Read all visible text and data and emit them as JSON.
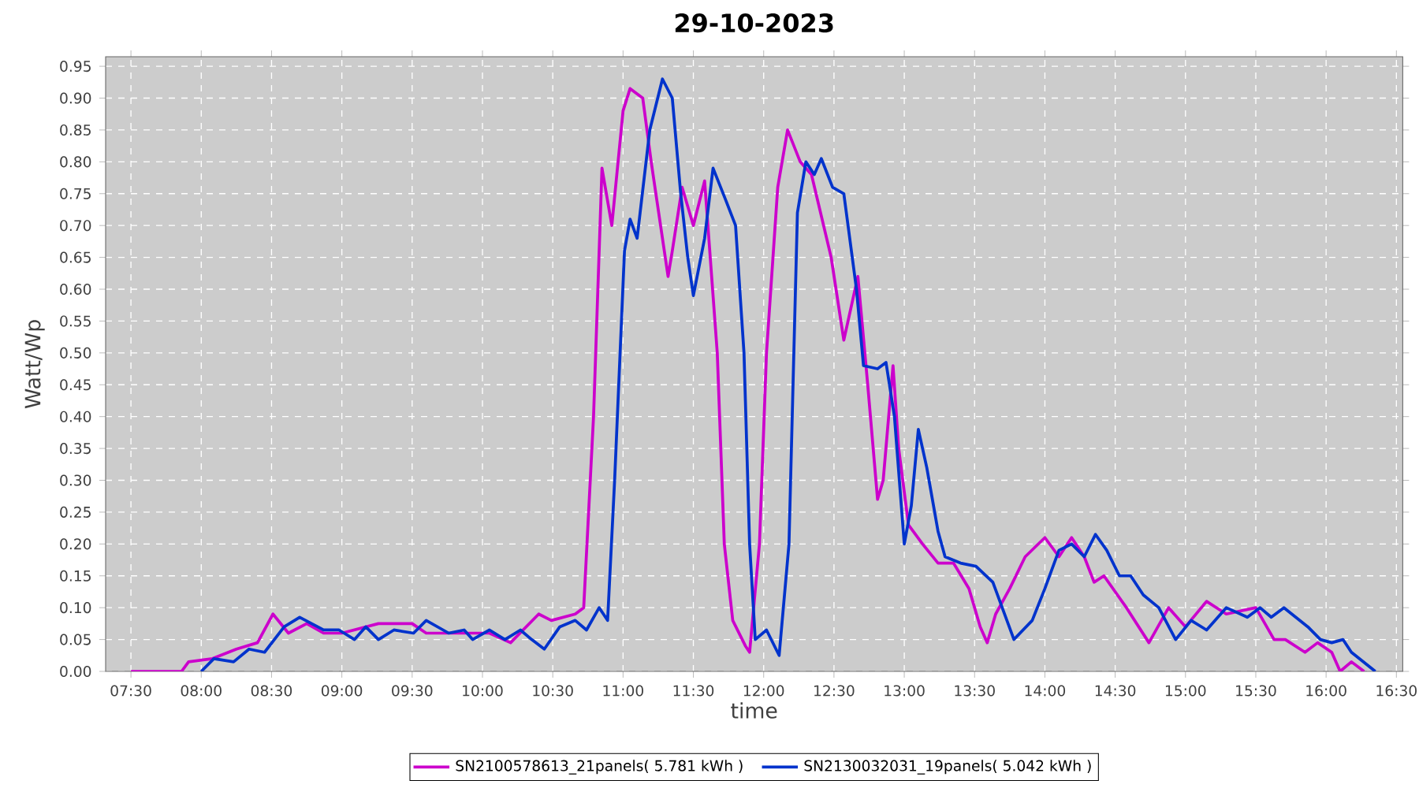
{
  "chart_data": {
    "type": "line",
    "title": "29-10-2023",
    "xlabel": "time",
    "ylabel": "Watt/Wp",
    "xlim": [
      7.32,
      16.545
    ],
    "ylim": [
      0,
      0.965
    ],
    "xticks": [
      {
        "value": 7.5,
        "label": "07:30"
      },
      {
        "value": 8,
        "label": "08:00"
      },
      {
        "value": 8.5,
        "label": "08:30"
      },
      {
        "value": 9,
        "label": "09:00"
      },
      {
        "value": 9.5,
        "label": "09:30"
      },
      {
        "value": 10,
        "label": "10:00"
      },
      {
        "value": 10.5,
        "label": "10:30"
      },
      {
        "value": 11,
        "label": "11:00"
      },
      {
        "value": 11.5,
        "label": "11:30"
      },
      {
        "value": 12,
        "label": "12:00"
      },
      {
        "value": 12.5,
        "label": "12:30"
      },
      {
        "value": 13,
        "label": "13:00"
      },
      {
        "value": 13.5,
        "label": "13:30"
      },
      {
        "value": 14,
        "label": "14:00"
      },
      {
        "value": 14.5,
        "label": "14:30"
      },
      {
        "value": 15,
        "label": "15:00"
      },
      {
        "value": 15.5,
        "label": "15:30"
      },
      {
        "value": 16,
        "label": "16:00"
      },
      {
        "value": 16.5,
        "label": "16:30"
      }
    ],
    "yticks": [
      {
        "value": 0,
        "label": "0.00"
      },
      {
        "value": 0.05,
        "label": "0.05"
      },
      {
        "value": 0.1,
        "label": "0.10"
      },
      {
        "value": 0.15,
        "label": "0.15"
      },
      {
        "value": 0.2,
        "label": "0.20"
      },
      {
        "value": 0.25,
        "label": "0.25"
      },
      {
        "value": 0.3,
        "label": "0.30"
      },
      {
        "value": 0.35,
        "label": "0.35"
      },
      {
        "value": 0.4,
        "label": "0.40"
      },
      {
        "value": 0.45,
        "label": "0.45"
      },
      {
        "value": 0.5,
        "label": "0.50"
      },
      {
        "value": 0.55,
        "label": "0.55"
      },
      {
        "value": 0.6,
        "label": "0.60"
      },
      {
        "value": 0.65,
        "label": "0.65"
      },
      {
        "value": 0.7,
        "label": "0.70"
      },
      {
        "value": 0.75,
        "label": "0.75"
      },
      {
        "value": 0.8,
        "label": "0.80"
      },
      {
        "value": 0.85,
        "label": "0.85"
      },
      {
        "value": 0.9,
        "label": "0.90"
      },
      {
        "value": 0.95,
        "label": "0.95"
      }
    ],
    "grid": true,
    "legend": "bottom",
    "marker": "none",
    "line_style": "solid",
    "series": [
      {
        "name": "SN2100578613_21panels( 5.781 kWh )",
        "color": "#cc00cc",
        "x": [
          7.5,
          7.86,
          7.91,
          8.08,
          8.25,
          8.4,
          8.51,
          8.62,
          8.75,
          8.87,
          9.0,
          9.26,
          9.5,
          9.6,
          10.05,
          10.2,
          10.4,
          10.49,
          10.66,
          10.72,
          10.79,
          10.85,
          10.92,
          11.0,
          11.05,
          11.14,
          11.2,
          11.32,
          11.35,
          11.42,
          11.5,
          11.58,
          11.67,
          11.72,
          11.78,
          11.87,
          11.9,
          11.97,
          12.02,
          12.1,
          12.17,
          12.26,
          12.34,
          12.48,
          12.57,
          12.67,
          12.74,
          12.81,
          12.85,
          12.92,
          12.96,
          13.03,
          13.13,
          13.24,
          13.35,
          13.46,
          13.54,
          13.59,
          13.65,
          13.75,
          13.86,
          14.0,
          14.1,
          14.19,
          14.28,
          14.35,
          14.42,
          14.58,
          14.74,
          14.88,
          15.0,
          15.15,
          15.29,
          15.5,
          15.63,
          15.71,
          15.85,
          15.94,
          16.04,
          16.1,
          16.18,
          16.27
        ],
        "values": [
          0,
          0,
          0.015,
          0.02,
          0.035,
          0.045,
          0.09,
          0.06,
          0.075,
          0.06,
          0.06,
          0.075,
          0.075,
          0.06,
          0.06,
          0.045,
          0.09,
          0.08,
          0.09,
          0.1,
          0.4,
          0.79,
          0.7,
          0.88,
          0.915,
          0.9,
          0.8,
          0.62,
          0.66,
          0.76,
          0.7,
          0.77,
          0.5,
          0.2,
          0.08,
          0.04,
          0.03,
          0.2,
          0.5,
          0.76,
          0.85,
          0.8,
          0.78,
          0.65,
          0.52,
          0.62,
          0.45,
          0.27,
          0.3,
          0.48,
          0.35,
          0.23,
          0.2,
          0.17,
          0.17,
          0.13,
          0.07,
          0.045,
          0.09,
          0.13,
          0.18,
          0.21,
          0.18,
          0.21,
          0.18,
          0.14,
          0.15,
          0.1,
          0.045,
          0.1,
          0.07,
          0.11,
          0.09,
          0.1,
          0.05,
          0.05,
          0.03,
          0.045,
          0.03,
          0,
          0.015,
          0
        ]
      },
      {
        "name": "SN2130032031_19panels( 5.042 kWh )",
        "color": "#0033cc",
        "x": [
          8.0,
          8.09,
          8.23,
          8.34,
          8.45,
          8.59,
          8.7,
          8.87,
          8.98,
          9.09,
          9.17,
          9.26,
          9.37,
          9.51,
          9.6,
          9.76,
          9.87,
          9.93,
          10.05,
          10.16,
          10.27,
          10.35,
          10.44,
          10.55,
          10.66,
          10.74,
          10.83,
          10.89,
          10.94,
          11.01,
          11.05,
          11.1,
          11.19,
          11.28,
          11.35,
          11.41,
          11.46,
          11.5,
          11.58,
          11.64,
          11.73,
          11.8,
          11.86,
          11.9,
          11.94,
          12.02,
          12.11,
          12.18,
          12.24,
          12.3,
          12.36,
          12.41,
          12.49,
          12.57,
          12.66,
          12.71,
          12.81,
          12.87,
          12.93,
          13.0,
          13.05,
          13.1,
          13.16,
          13.24,
          13.29,
          13.4,
          13.51,
          13.63,
          13.78,
          13.91,
          14.0,
          14.1,
          14.19,
          14.28,
          14.36,
          14.44,
          14.53,
          14.61,
          14.7,
          14.81,
          14.93,
          15.04,
          15.15,
          15.29,
          15.44,
          15.53,
          15.61,
          15.7,
          15.87,
          15.96,
          16.04,
          16.12,
          16.18,
          16.35
        ],
        "values": [
          0,
          0.02,
          0.015,
          0.035,
          0.03,
          0.07,
          0.085,
          0.065,
          0.065,
          0.05,
          0.07,
          0.05,
          0.065,
          0.06,
          0.08,
          0.06,
          0.065,
          0.05,
          0.065,
          0.05,
          0.065,
          0.05,
          0.035,
          0.07,
          0.08,
          0.065,
          0.1,
          0.08,
          0.3,
          0.66,
          0.71,
          0.68,
          0.85,
          0.93,
          0.9,
          0.75,
          0.65,
          0.59,
          0.68,
          0.79,
          0.74,
          0.7,
          0.5,
          0.2,
          0.05,
          0.065,
          0.025,
          0.2,
          0.72,
          0.8,
          0.78,
          0.805,
          0.76,
          0.75,
          0.6,
          0.48,
          0.475,
          0.485,
          0.4,
          0.2,
          0.26,
          0.38,
          0.32,
          0.22,
          0.18,
          0.17,
          0.165,
          0.14,
          0.05,
          0.08,
          0.13,
          0.19,
          0.2,
          0.18,
          0.215,
          0.19,
          0.15,
          0.15,
          0.12,
          0.1,
          0.05,
          0.08,
          0.065,
          0.1,
          0.085,
          0.1,
          0.085,
          0.1,
          0.07,
          0.05,
          0.045,
          0.05,
          0.03,
          0
        ]
      }
    ]
  }
}
